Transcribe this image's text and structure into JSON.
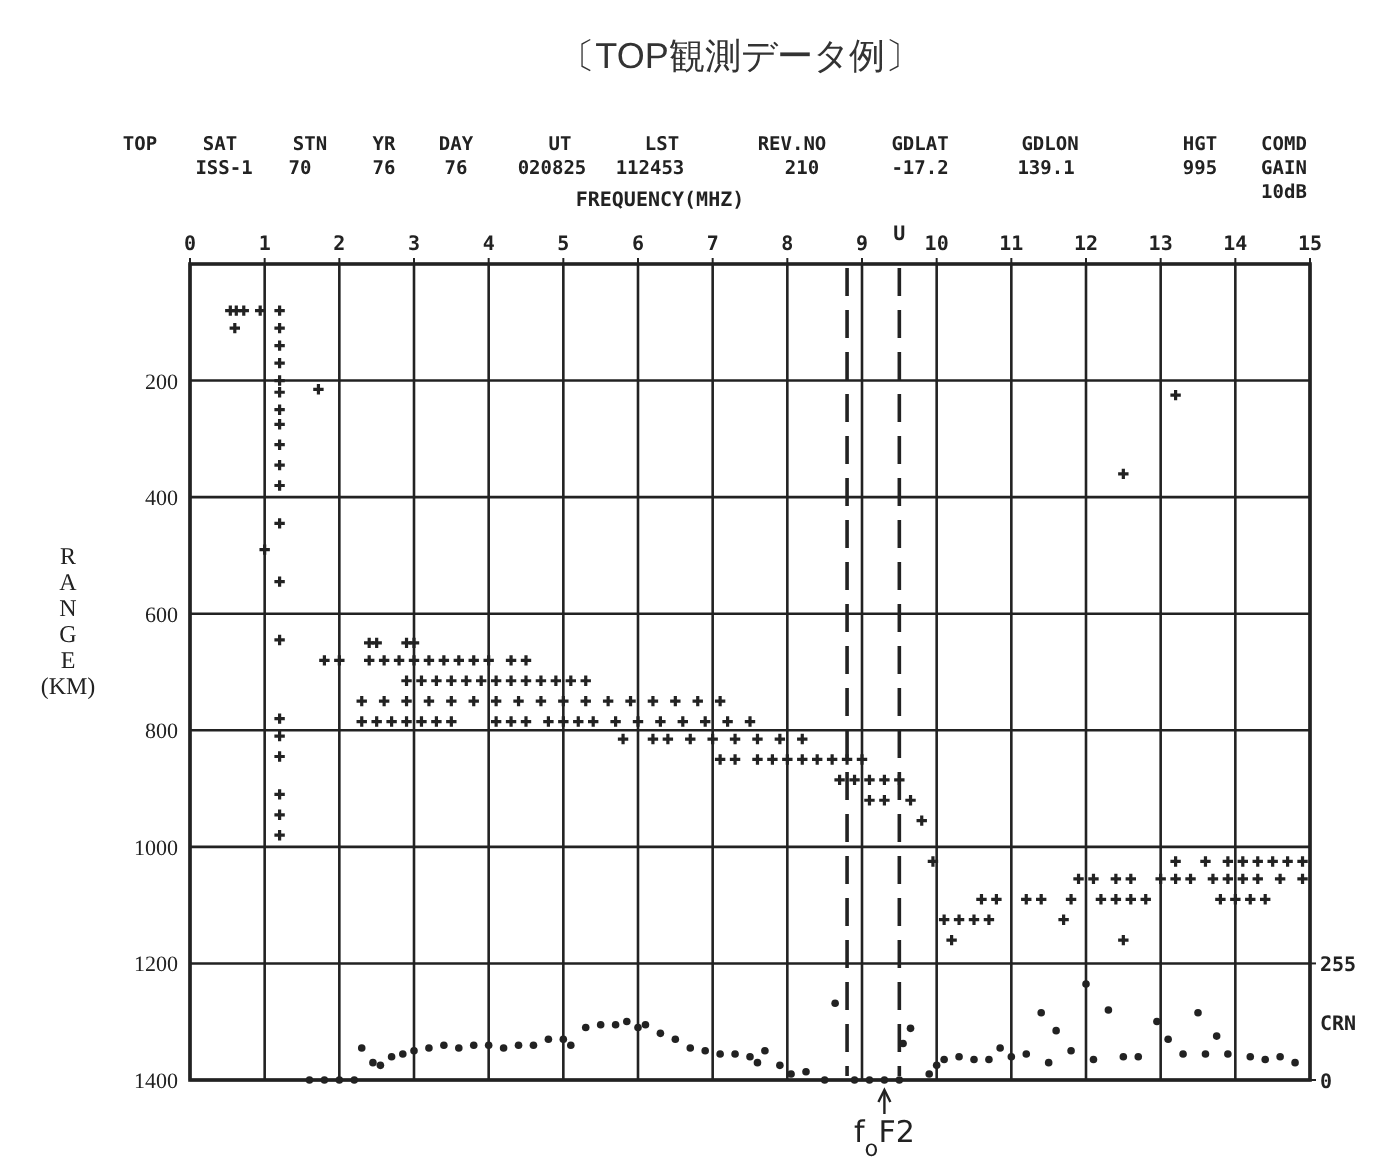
{
  "chart_data": {
    "type": "scatter",
    "title": "〔TOP観測データ例〕",
    "xlabel": "FREQUENCY(MHZ)",
    "ylabel": "RANGE (KM)",
    "y2label": "CRN",
    "xlim": [
      0,
      15
    ],
    "xticks": [
      0,
      1,
      2,
      3,
      4,
      5,
      6,
      7,
      8,
      9,
      10,
      11,
      12,
      13,
      14,
      15
    ],
    "ylim": [
      1400,
      0
    ],
    "yticks": [
      200,
      400,
      600,
      800,
      1000,
      1200,
      1400
    ],
    "y2lim": [
      0,
      1785
    ],
    "y2ticks": [
      0,
      255
    ],
    "grid": true,
    "marker": "cross",
    "ref_lines": [
      {
        "axis": "x",
        "value": 8.8,
        "line_style": "dashed",
        "color": "#222222"
      },
      {
        "axis": "x",
        "value": 9.5,
        "line_style": "dashed",
        "color": "#222222",
        "label": "U"
      }
    ],
    "annotations": [
      "TOP",
      "SAT",
      "ISS-1",
      "STN",
      "70",
      "YR",
      "76",
      "DAY",
      "76",
      "UT",
      "020825",
      "LST",
      "112453",
      "REV.NO",
      "210",
      "GDLAT",
      "-17.2",
      "GDLON",
      "139.1",
      "HGT",
      "995",
      "COMD",
      "GAIN",
      "10dB",
      {
        "text": "f$_{o}$F2",
        "x": 9.3,
        "y": 1400
      }
    ],
    "series": [
      {
        "color": "#222222",
        "x": [
          0.54,
          0.62,
          0.72,
          0.94,
          1.2,
          0.6,
          1.2,
          1.2,
          1.2,
          1.2,
          1.2,
          1.2,
          1.2,
          1.2,
          1.2,
          1.2,
          1.2,
          1.2,
          1.2,
          1.2,
          1.2,
          1.2,
          1.2,
          1.2,
          1.2,
          1.0,
          1.72,
          2.4,
          2.5,
          2.9,
          3.0,
          1.8,
          2.0,
          2.4,
          2.6,
          2.8,
          3.0,
          3.2,
          3.4,
          3.6,
          3.8,
          4.0,
          4.3,
          4.5,
          2.9,
          3.1,
          3.3,
          3.5,
          3.7,
          3.9,
          4.1,
          4.3,
          4.5,
          4.7,
          4.9,
          5.1,
          5.3,
          2.3,
          2.6,
          2.9,
          3.2,
          3.5,
          3.8,
          4.1,
          4.4,
          4.7,
          5.0,
          5.3,
          5.6,
          5.9,
          6.2,
          6.5,
          6.8,
          7.1,
          2.3,
          2.5,
          2.7,
          2.9,
          3.1,
          3.3,
          3.5,
          4.1,
          4.3,
          4.5,
          4.8,
          5.0,
          5.2,
          5.4,
          5.7,
          6.0,
          6.3,
          6.6,
          6.9,
          7.2,
          7.5,
          5.8,
          6.2,
          6.4,
          6.7,
          7.0,
          7.3,
          7.6,
          7.9,
          8.2,
          7.1,
          7.3,
          7.6,
          7.8,
          8.0,
          8.2,
          8.4,
          8.6,
          8.8,
          9.0,
          8.7,
          8.9,
          9.1,
          9.3,
          9.5,
          9.1,
          9.3,
          9.65,
          9.8,
          9.95,
          10.1,
          10.3,
          10.5,
          10.7,
          10.6,
          10.8,
          11.2,
          11.4,
          10.2,
          11.7,
          11.8,
          11.9,
          12.1,
          12.4,
          12.6,
          12.2,
          12.4,
          12.6,
          12.8,
          12.5,
          13.0,
          13.2,
          13.4,
          13.7,
          13.9,
          14.1,
          14.3,
          14.6,
          14.9,
          13.2,
          13.6,
          13.9,
          14.1,
          14.3,
          14.5,
          14.7,
          14.9,
          13.8,
          14.0,
          14.2,
          14.4,
          12.5,
          13.2
        ],
        "values": [
          80,
          80,
          80,
          80,
          80,
          110,
          110,
          140,
          170,
          200,
          220,
          250,
          275,
          310,
          345,
          380,
          445,
          545,
          645,
          780,
          810,
          845,
          910,
          945,
          980,
          490,
          215,
          650,
          650,
          650,
          650,
          680,
          680,
          680,
          680,
          680,
          680,
          680,
          680,
          680,
          680,
          680,
          680,
          680,
          715,
          715,
          715,
          715,
          715,
          715,
          715,
          715,
          715,
          715,
          715,
          715,
          715,
          750,
          750,
          750,
          750,
          750,
          750,
          750,
          750,
          750,
          750,
          750,
          750,
          750,
          750,
          750,
          750,
          750,
          785,
          785,
          785,
          785,
          785,
          785,
          785,
          785,
          785,
          785,
          785,
          785,
          785,
          785,
          785,
          785,
          785,
          785,
          785,
          785,
          785,
          815,
          815,
          815,
          815,
          815,
          815,
          815,
          815,
          815,
          850,
          850,
          850,
          850,
          850,
          850,
          850,
          850,
          850,
          850,
          885,
          885,
          885,
          885,
          885,
          920,
          920,
          920,
          955,
          1025,
          1125,
          1125,
          1125,
          1125,
          1090,
          1090,
          1090,
          1090,
          1160,
          1125,
          1090,
          1055,
          1055,
          1055,
          1055,
          1090,
          1090,
          1090,
          1090,
          1160,
          1055,
          1055,
          1055,
          1055,
          1055,
          1055,
          1055,
          1055,
          1055,
          1025,
          1025,
          1025,
          1025,
          1025,
          1025,
          1025,
          1025,
          1090,
          1090,
          1090,
          1090,
          360,
          225
        ]
      },
      {
        "color": "#222222",
        "marker": "circle",
        "axis": "y2",
        "x": [
          1.6,
          1.8,
          2.0,
          2.2,
          2.3,
          2.45,
          2.55,
          2.7,
          2.85,
          3.0,
          3.2,
          3.4,
          3.6,
          3.8,
          4.0,
          4.2,
          4.4,
          4.6,
          4.8,
          5.0,
          5.1,
          5.3,
          5.5,
          5.7,
          5.85,
          6.0,
          6.1,
          6.3,
          6.5,
          6.7,
          6.9,
          7.1,
          7.3,
          7.5,
          7.6,
          7.7,
          7.9,
          8.05,
          8.25,
          8.5,
          8.64,
          8.9,
          9.1,
          9.3,
          9.5,
          9.55,
          9.65,
          9.9,
          10.0,
          10.1,
          10.3,
          10.5,
          10.7,
          10.85,
          11.0,
          11.2,
          11.4,
          11.5,
          11.6,
          11.8,
          12.0,
          12.1,
          12.3,
          12.5,
          12.7,
          12.95,
          13.1,
          13.3,
          13.5,
          13.6,
          13.75,
          13.9,
          14.2,
          14.4,
          14.6,
          14.8
        ],
        "values": [
          0,
          0,
          0,
          0,
          70,
          38,
          32,
          51,
          57,
          64,
          70,
          76,
          70,
          76,
          76,
          70,
          76,
          76,
          89,
          89,
          76,
          115,
          121,
          121,
          128,
          115,
          121,
          102,
          89,
          70,
          64,
          57,
          57,
          51,
          38,
          64,
          32,
          13,
          18,
          0,
          168,
          0,
          0,
          0,
          0,
          80,
          113,
          13,
          32,
          45,
          51,
          45,
          45,
          70,
          51,
          57,
          147,
          38,
          108,
          64,
          210,
          45,
          153,
          51,
          51,
          128,
          89,
          57,
          147,
          57,
          96,
          57,
          51,
          45,
          51,
          38
        ]
      }
    ]
  }
}
